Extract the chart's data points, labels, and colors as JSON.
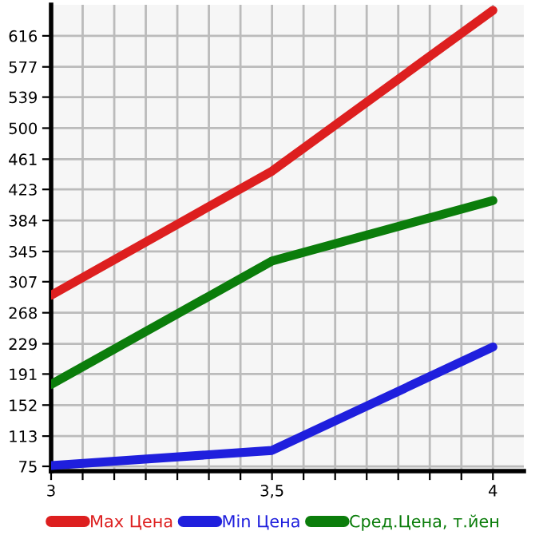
{
  "chart_data": {
    "type": "line",
    "x": [
      3,
      3.5,
      4
    ],
    "series": [
      {
        "name": "Max Цена",
        "color": "#dd1f1f",
        "values": [
          290,
          446,
          648
        ]
      },
      {
        "name": "Min Цена",
        "color": "#1f1fdd",
        "values": [
          76,
          95,
          225
        ]
      },
      {
        "name": "Сред.Цена, т.йен",
        "color": "#0b7d0b",
        "values": [
          178,
          333,
          409
        ]
      }
    ],
    "xlim": [
      3,
      4.07
    ],
    "ylim": [
      69,
      655
    ],
    "xticks": [
      {
        "value": 3,
        "label": "3"
      },
      {
        "value": 3.0714,
        "label": null
      },
      {
        "value": 3.1429,
        "label": null
      },
      {
        "value": 3.2143,
        "label": null
      },
      {
        "value": 3.2857,
        "label": null
      },
      {
        "value": 3.3571,
        "label": null
      },
      {
        "value": 3.4286,
        "label": null
      },
      {
        "value": 3.5,
        "label": "3,5"
      },
      {
        "value": 3.5714,
        "label": null
      },
      {
        "value": 3.6429,
        "label": null
      },
      {
        "value": 3.7143,
        "label": null
      },
      {
        "value": 3.7857,
        "label": null
      },
      {
        "value": 3.8571,
        "label": null
      },
      {
        "value": 3.9286,
        "label": null
      },
      {
        "value": 4,
        "label": "4"
      }
    ],
    "yticks": [
      75,
      113,
      152,
      191,
      229,
      268,
      307,
      345,
      384,
      423,
      461,
      500,
      539,
      577,
      616
    ],
    "grid": true,
    "legend": "bottom",
    "marker": "none",
    "line_style": "solid"
  }
}
